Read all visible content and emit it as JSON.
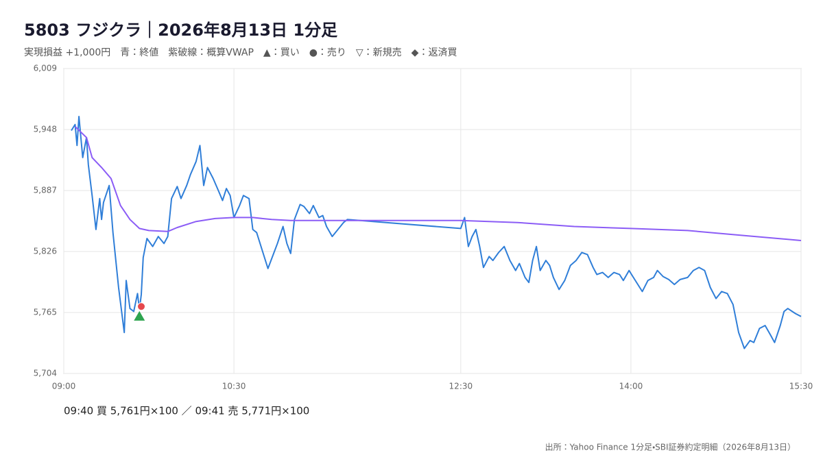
{
  "chart_data": {
    "type": "line",
    "title": "5803 フジクラ｜2026年8月13日 1分足",
    "subtitle": "実現損益 +1,000円　青：終値　紫破線：概算VWAP　▲：買い　●：売り　▽：新規売　◆：返済買",
    "note": "09:40 買 5,761円×100 ／ 09:41 売 5,771円×100",
    "source": "出所：Yahoo Finance 1分足・SBI証券約定明細（2026年8月13日）",
    "xlim": [
      "09:00",
      "15:30"
    ],
    "xticks": [
      "09:00",
      "10:30",
      "12:30",
      "14:00",
      "15:30"
    ],
    "ylim": [
      5704,
      6009
    ],
    "yticks": [
      {
        "value": 5704,
        "label": "5,704"
      },
      {
        "value": 5765,
        "label": "5,765"
      },
      {
        "value": 5826,
        "label": "5,826"
      },
      {
        "value": 5887,
        "label": "5,887"
      },
      {
        "value": 5948,
        "label": "5,948"
      },
      {
        "value": 6009,
        "label": "6,009"
      }
    ],
    "grid": true,
    "series": [
      {
        "color": "#2f7ed8",
        "x": [
          "09:04",
          "09:06",
          "09:07",
          "09:08",
          "09:10",
          "09:12",
          "09:13",
          "09:15",
          "09:17",
          "09:19",
          "09:20",
          "09:21",
          "09:24",
          "09:26",
          "09:29",
          "09:32",
          "09:33",
          "09:35",
          "09:37",
          "09:39",
          "09:40",
          "09:41",
          "09:42",
          "09:44",
          "09:47",
          "09:50",
          "09:53",
          "09:55",
          "09:57",
          "10:00",
          "10:02",
          "10:05",
          "10:07",
          "10:10",
          "10:12",
          "10:14",
          "10:16",
          "10:19",
          "10:22",
          "10:24",
          "10:26",
          "10:28",
          "10:30",
          "10:33",
          "10:35",
          "10:38",
          "10:40",
          "10:42",
          "10:45",
          "10:48",
          "10:51",
          "10:53",
          "10:56",
          "10:58",
          "11:00",
          "11:02",
          "11:05",
          "11:07",
          "11:10",
          "11:12",
          "11:15",
          "11:17",
          "11:19",
          "11:22",
          "11:25",
          "11:28",
          "11:30",
          "12:30",
          "12:32",
          "12:34",
          "12:36",
          "12:38",
          "12:40",
          "12:42",
          "12:45",
          "12:47",
          "12:50",
          "12:53",
          "12:56",
          "12:59",
          "13:01",
          "13:04",
          "13:06",
          "13:08",
          "13:10",
          "13:12",
          "13:15",
          "13:17",
          "13:19",
          "13:22",
          "13:25",
          "13:28",
          "13:31",
          "13:34",
          "13:37",
          "13:40",
          "13:42",
          "13:45",
          "13:48",
          "13:51",
          "13:54",
          "13:56",
          "13:59",
          "14:01",
          "14:06",
          "14:09",
          "14:12",
          "14:14",
          "14:17",
          "14:20",
          "14:23",
          "14:26",
          "14:30",
          "14:33",
          "14:36",
          "14:39",
          "14:42",
          "14:45",
          "14:48",
          "14:51",
          "14:54",
          "14:57",
          "15:00",
          "15:03",
          "15:05",
          "15:08",
          "15:11",
          "15:14",
          "15:16",
          "15:19",
          "15:21",
          "15:23",
          "15:27",
          "15:30"
        ],
        "values": [
          5947,
          5953,
          5932,
          5961,
          5920,
          5940,
          5913,
          5882,
          5848,
          5879,
          5858,
          5875,
          5892,
          5845,
          5790,
          5745,
          5797,
          5769,
          5766,
          5784,
          5768,
          5783,
          5820,
          5839,
          5831,
          5841,
          5834,
          5841,
          5879,
          5891,
          5879,
          5892,
          5903,
          5916,
          5932,
          5892,
          5910,
          5899,
          5886,
          5877,
          5889,
          5882,
          5860,
          5872,
          5882,
          5879,
          5848,
          5845,
          5827,
          5809,
          5824,
          5834,
          5851,
          5834,
          5824,
          5858,
          5873,
          5871,
          5864,
          5872,
          5860,
          5862,
          5851,
          5841,
          5848,
          5855,
          5858,
          5849,
          5860,
          5831,
          5841,
          5848,
          5831,
          5810,
          5821,
          5817,
          5825,
          5831,
          5817,
          5807,
          5814,
          5800,
          5795,
          5817,
          5831,
          5807,
          5817,
          5812,
          5800,
          5788,
          5797,
          5812,
          5817,
          5825,
          5823,
          5810,
          5803,
          5805,
          5800,
          5805,
          5803,
          5797,
          5807,
          5801,
          5786,
          5797,
          5800,
          5807,
          5801,
          5798,
          5793,
          5798,
          5800,
          5807,
          5810,
          5807,
          5790,
          5779,
          5786,
          5784,
          5773,
          5745,
          5729,
          5737,
          5735,
          5749,
          5752,
          5742,
          5735,
          5752,
          5766,
          5769,
          5764,
          5761
        ]
      },
      {
        "color": "#8b5cf6",
        "x": [
          "09:06",
          "09:12",
          "09:15",
          "09:20",
          "09:25",
          "09:30",
          "09:35",
          "09:40",
          "09:45",
          "09:55",
          "10:00",
          "10:10",
          "10:20",
          "10:30",
          "10:40",
          "10:50",
          "11:00",
          "11:30",
          "12:30",
          "13:00",
          "13:30",
          "14:00",
          "14:30",
          "15:00",
          "15:30"
        ],
        "values": [
          5951,
          5940,
          5920,
          5910,
          5899,
          5872,
          5858,
          5849,
          5847,
          5846,
          5850,
          5856,
          5859,
          5860,
          5860,
          5858,
          5857,
          5857,
          5857,
          5855,
          5851,
          5849,
          5847,
          5842,
          5837
        ]
      }
    ],
    "trades": [
      {
        "time": "09:40",
        "price": 5761,
        "color": "#2ea44f"
      },
      {
        "time": "09:41",
        "price": 5771,
        "color": "#e5484d"
      }
    ]
  }
}
